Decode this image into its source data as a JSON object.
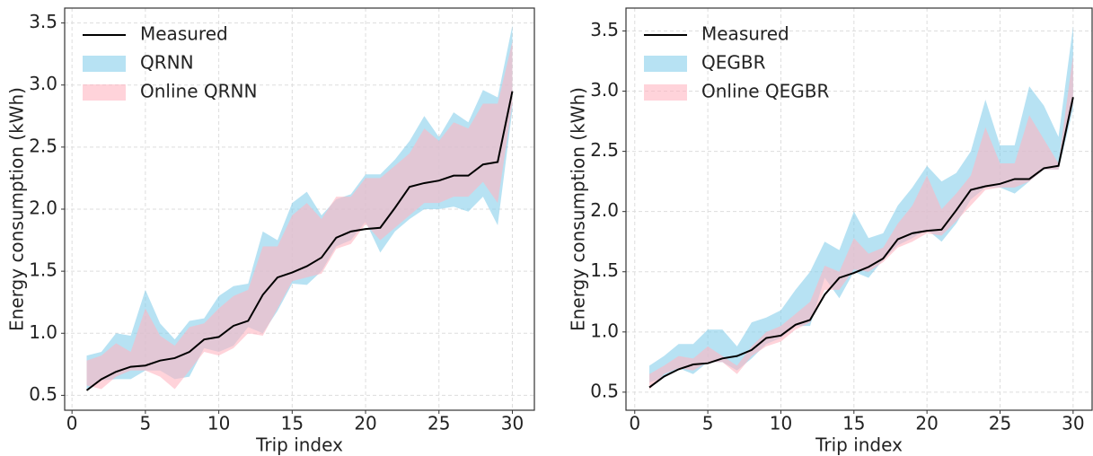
{
  "chart_data": [
    {
      "type": "line",
      "xlabel": "Trip index",
      "ylabel": "Energy consumption (kWh)",
      "x": [
        1,
        2,
        3,
        4,
        5,
        6,
        7,
        8,
        9,
        10,
        11,
        12,
        13,
        14,
        15,
        16,
        17,
        18,
        19,
        20,
        21,
        22,
        23,
        24,
        25,
        26,
        27,
        28,
        29,
        30
      ],
      "xlim": [
        -0.5,
        31.5
      ],
      "ylim": [
        0.38,
        3.62
      ],
      "xticks": [
        0,
        5,
        10,
        15,
        20,
        25,
        30
      ],
      "yticks": [
        0.5,
        {
          "value": 1.0,
          "label": "1.0"
        },
        1.5,
        {
          "value": 2.0,
          "label": "2.0"
        },
        2.5,
        {
          "value": 3.0,
          "label": "3.0"
        },
        3.5
      ],
      "grid": true,
      "legend": "upper left",
      "series": [
        {
          "name": "Measured",
          "color": "#000000",
          "values": [
            0.54,
            0.63,
            0.69,
            0.73,
            0.74,
            0.78,
            0.8,
            0.85,
            0.95,
            0.97,
            1.06,
            1.1,
            1.31,
            1.45,
            1.49,
            1.54,
            1.61,
            1.77,
            1.82,
            1.84,
            1.85,
            2.01,
            2.18,
            2.21,
            2.23,
            2.27,
            2.27,
            2.36,
            2.38,
            2.95
          ]
        },
        {
          "name": "QRNN",
          "color": "#87ceeb",
          "lower": [
            0.55,
            0.62,
            0.63,
            0.63,
            0.7,
            0.7,
            0.63,
            0.65,
            0.88,
            0.85,
            0.9,
            1.05,
            1.0,
            1.18,
            1.4,
            1.39,
            1.5,
            1.7,
            1.75,
            1.9,
            1.65,
            1.82,
            1.92,
            2.0,
            2.0,
            2.02,
            1.98,
            2.1,
            1.87,
            2.8
          ],
          "upper": [
            0.82,
            0.85,
            1.0,
            0.98,
            1.35,
            1.08,
            0.95,
            1.1,
            1.12,
            1.3,
            1.38,
            1.4,
            1.82,
            1.75,
            2.05,
            2.14,
            1.95,
            2.08,
            2.12,
            2.28,
            2.28,
            2.4,
            2.55,
            2.75,
            2.58,
            2.78,
            2.7,
            2.96,
            2.9,
            3.48
          ]
        },
        {
          "name": "Online QRNN",
          "color": "#ffb6c1",
          "lower": [
            0.58,
            0.55,
            0.65,
            0.7,
            0.7,
            0.65,
            0.55,
            0.7,
            0.85,
            0.82,
            0.88,
            1.0,
            0.98,
            1.2,
            1.42,
            1.45,
            1.48,
            1.68,
            1.72,
            1.88,
            1.75,
            1.85,
            1.95,
            2.05,
            2.05,
            2.1,
            2.1,
            2.22,
            2.05,
            2.85
          ],
          "upper": [
            0.78,
            0.82,
            0.92,
            0.85,
            1.2,
            0.98,
            0.9,
            1.05,
            1.08,
            1.2,
            1.3,
            1.35,
            1.7,
            1.7,
            1.95,
            2.05,
            1.92,
            2.1,
            2.1,
            2.25,
            2.25,
            2.35,
            2.45,
            2.65,
            2.55,
            2.7,
            2.65,
            2.85,
            2.85,
            3.35
          ]
        }
      ]
    },
    {
      "type": "line",
      "xlabel": "Trip index",
      "ylabel": "Energy consumption (kWh)",
      "x": [
        1,
        2,
        3,
        4,
        5,
        6,
        7,
        8,
        9,
        10,
        11,
        12,
        13,
        14,
        15,
        16,
        17,
        18,
        19,
        20,
        21,
        22,
        23,
        24,
        25,
        26,
        27,
        28,
        29,
        30
      ],
      "xlim": [
        -0.6,
        31.3
      ],
      "ylim": [
        0.35,
        3.69
      ],
      "xticks": [
        0,
        5,
        10,
        15,
        20,
        25,
        30
      ],
      "yticks": [
        0.5,
        {
          "value": 1.0,
          "label": "1.0"
        },
        1.5,
        {
          "value": 2.0,
          "label": "2.0"
        },
        2.5,
        {
          "value": 3.0,
          "label": "3.0"
        },
        3.5
      ],
      "grid": true,
      "legend": "upper left",
      "series": [
        {
          "name": "Measured",
          "color": "#000000",
          "values": [
            0.54,
            0.63,
            0.69,
            0.73,
            0.74,
            0.78,
            0.8,
            0.85,
            0.95,
            0.97,
            1.06,
            1.1,
            1.31,
            1.45,
            1.49,
            1.54,
            1.61,
            1.77,
            1.82,
            1.84,
            1.85,
            2.01,
            2.18,
            2.21,
            2.23,
            2.27,
            2.27,
            2.36,
            2.38,
            2.95
          ]
        },
        {
          "name": "QEGBR",
          "color": "#87ceeb",
          "lower": [
            0.58,
            0.62,
            0.7,
            0.65,
            0.75,
            0.75,
            0.68,
            0.78,
            0.9,
            0.95,
            1.05,
            1.05,
            1.45,
            1.28,
            1.5,
            1.45,
            1.6,
            1.72,
            1.78,
            1.85,
            1.75,
            1.9,
            2.1,
            2.2,
            2.2,
            2.15,
            2.25,
            2.35,
            2.35,
            2.85
          ],
          "upper": [
            0.72,
            0.8,
            0.9,
            0.9,
            1.02,
            1.02,
            0.88,
            1.08,
            1.12,
            1.18,
            1.35,
            1.5,
            1.75,
            1.68,
            2.0,
            1.78,
            1.82,
            2.05,
            2.2,
            2.38,
            2.25,
            2.32,
            2.5,
            2.93,
            2.55,
            2.55,
            3.04,
            2.88,
            2.62,
            3.54
          ]
        },
        {
          "name": "Online QEGBR",
          "color": "#ffb6c1",
          "lower": [
            0.52,
            0.65,
            0.7,
            0.68,
            0.75,
            0.75,
            0.65,
            0.8,
            0.88,
            0.92,
            1.02,
            1.08,
            1.35,
            1.35,
            1.52,
            1.5,
            1.58,
            1.7,
            1.75,
            1.82,
            1.8,
            1.92,
            2.05,
            2.18,
            2.2,
            2.2,
            2.25,
            2.35,
            2.35,
            2.9
          ],
          "upper": [
            0.65,
            0.72,
            0.8,
            0.78,
            0.88,
            0.8,
            0.72,
            0.88,
            1.0,
            1.05,
            1.15,
            1.25,
            1.55,
            1.5,
            1.78,
            1.65,
            1.7,
            1.9,
            2.05,
            2.3,
            2.02,
            2.15,
            2.3,
            2.7,
            2.4,
            2.4,
            2.8,
            2.6,
            2.4,
            3.3
          ]
        }
      ]
    }
  ]
}
